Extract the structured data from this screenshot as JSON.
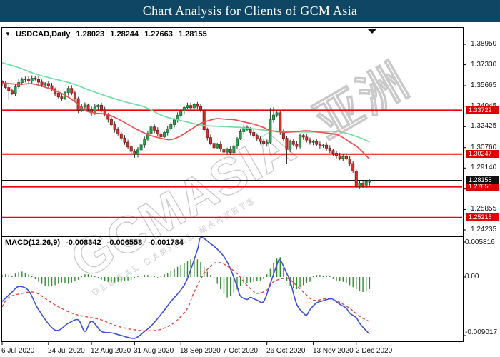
{
  "title_bar": {
    "title": "Chart Analysis for Clients of GCM Asia",
    "bg_color": "#0e4663"
  },
  "chart_header": {
    "symbol_label": "USDCAD,Daily",
    "open": "1.28023",
    "high": "1.28244",
    "low": "1.27663",
    "close": "1.28155"
  },
  "watermark": {
    "main": "GCMASIA",
    "cjk": "亚洲",
    "sub": "GLOBAL CAPITAL MARKETS",
    "color": "#c9c9c9"
  },
  "price_axis": {
    "tick_labels": [
      "1.38950",
      "1.37330",
      "1.35665",
      "1.34045",
      "1.32425",
      "1.30760",
      "1.29140",
      "1.27475",
      "1.25855",
      "1.24235"
    ]
  },
  "date_axis": {
    "labels": [
      "6 Jul 2020",
      "24 Jul 2020",
      "12 Aug 2020",
      "31 Aug 2020",
      "18 Sep 2020",
      "7 Oct 2020",
      "26 Oct 2020",
      "13 Nov 2020",
      "2 Dec 2020"
    ],
    "bar_indices": [
      0,
      14,
      27,
      40,
      54,
      67,
      80,
      94,
      107
    ]
  },
  "macd_header": {
    "label": "MACD(12,26,9)",
    "values": [
      "-0.008342",
      "-0.006558",
      "-0.001784"
    ]
  },
  "macd_axis": {
    "tick_labels": [
      "0.005816",
      "0.00",
      "-0.009017"
    ],
    "tick_values": [
      0.005816,
      0,
      -0.009017
    ]
  },
  "colors": {
    "up_fill": "#2e9e4f",
    "up_stroke": "#156b33",
    "down_fill": "#d32f2f",
    "down_stroke": "#7c1a1a",
    "wick": "#333333",
    "ma_fast_red": "#f0504f",
    "ma_slow_green": "#6fdfa3",
    "level_red": "#f20000",
    "badge_red": "#e00000",
    "current_black": "#111111",
    "macd_blue": "#3c50d8",
    "signal_red": "#e04545",
    "hist_green": "#2f8f2f"
  },
  "chart_data": {
    "type": "candlestick",
    "symbol": "USDCAD",
    "timeframe": "Daily",
    "price_levels": [
      {
        "price": 1.33722,
        "label": "1.33722",
        "style": "red"
      },
      {
        "price": 1.30247,
        "label": "1.30247",
        "style": "red"
      },
      {
        "price": 1.2765,
        "label": "1.27650",
        "style": "red"
      },
      {
        "price": 1.25215,
        "label": "1.25215",
        "style": "red"
      }
    ],
    "current_price": {
      "price": 1.28155,
      "label": "1.28155",
      "style": "black"
    },
    "last_candle": {
      "open": 1.28023,
      "high": 1.28244,
      "low": 1.27663,
      "close": 1.28155
    },
    "closes": [
      1.3585,
      1.3552,
      1.3528,
      1.3505,
      1.3558,
      1.3592,
      1.3615,
      1.3621,
      1.3604,
      1.3626,
      1.3618,
      1.3595,
      1.3572,
      1.3584,
      1.3566,
      1.354,
      1.3508,
      1.3478,
      1.3468,
      1.3512,
      1.3546,
      1.351,
      1.3464,
      1.3372,
      1.3398,
      1.3414,
      1.338,
      1.3352,
      1.3398,
      1.3412,
      1.3376,
      1.3338,
      1.33,
      1.3258,
      1.322,
      1.3186,
      1.3152,
      1.3118,
      1.3082,
      1.3046,
      1.3022,
      1.3058,
      1.3098,
      1.3142,
      1.3188,
      1.324,
      1.3214,
      1.3186,
      1.3162,
      1.3196,
      1.3224,
      1.3258,
      1.3296,
      1.3332,
      1.3366,
      1.3394,
      1.341,
      1.3392,
      1.3418,
      1.3402,
      1.3374,
      1.3218,
      1.3155,
      1.311,
      1.3075,
      1.31,
      1.3066,
      1.304,
      1.3064,
      1.3036,
      1.309,
      1.3148,
      1.3202,
      1.3238,
      1.322,
      1.3196,
      1.3172,
      1.3148,
      1.3124,
      1.3108,
      1.3118,
      1.3298,
      1.3334,
      1.3352,
      1.3198,
      1.315,
      1.3062,
      1.3125,
      1.3102,
      1.3085,
      1.3172,
      1.316,
      1.3136,
      1.3118,
      1.3124,
      1.3102,
      1.3088,
      1.3096,
      1.3072,
      1.3052,
      1.3032,
      1.3012,
      1.2992,
      1.3006,
      1.2986,
      1.295,
      1.2892,
      1.2768,
      1.2792,
      1.2778,
      1.2806,
      1.28155
    ],
    "candle_overrides": {
      "2": {
        "l": 1.3455
      },
      "9": {
        "h": 1.3648
      },
      "40": {
        "l": 1.2995
      },
      "69": {
        "l": 1.3017
      },
      "81": {
        "h": 1.339
      },
      "82": {
        "h": 1.3398
      },
      "83": {
        "h": 1.3372
      },
      "86": {
        "o": 1.315,
        "c": 1.3062,
        "h": 1.317,
        "l": 1.2944
      },
      "107": {
        "o": 1.289,
        "c": 1.2768,
        "l": 1.2756
      },
      "109": {
        "l": 1.2756
      },
      "111": {
        "o": 1.28023,
        "c": 1.28155,
        "h": 1.28244,
        "l": 1.27663
      }
    },
    "ma_slow_green": [
      [
        0,
        1.3748
      ],
      [
        5,
        1.371
      ],
      [
        10,
        1.366
      ],
      [
        15,
        1.3625
      ],
      [
        21,
        1.3585
      ],
      [
        26,
        1.3535
      ],
      [
        32,
        1.348
      ],
      [
        37,
        1.344
      ],
      [
        43,
        1.3398
      ],
      [
        49,
        1.3323
      ],
      [
        55,
        1.3285
      ],
      [
        60,
        1.3255
      ],
      [
        65,
        1.3245
      ],
      [
        71,
        1.3238
      ],
      [
        76,
        1.3225
      ],
      [
        81,
        1.321
      ],
      [
        86,
        1.3203
      ],
      [
        92,
        1.32
      ],
      [
        97,
        1.3203
      ],
      [
        101,
        1.3205
      ],
      [
        104,
        1.319
      ],
      [
        107,
        1.3165
      ],
      [
        109,
        1.3145
      ],
      [
        111,
        1.312
      ]
    ],
    "ma_fast_red": [
      [
        0,
        1.3588
      ],
      [
        5,
        1.3578
      ],
      [
        9,
        1.3582
      ],
      [
        13,
        1.3555
      ],
      [
        18,
        1.3505
      ],
      [
        22,
        1.344
      ],
      [
        25,
        1.3372
      ],
      [
        28,
        1.335
      ],
      [
        32,
        1.3338
      ],
      [
        36,
        1.329
      ],
      [
        40,
        1.323
      ],
      [
        44,
        1.318
      ],
      [
        48,
        1.315
      ],
      [
        51,
        1.314
      ],
      [
        54,
        1.317
      ],
      [
        57,
        1.322
      ],
      [
        60,
        1.3268
      ],
      [
        63,
        1.3295
      ],
      [
        65,
        1.3306
      ],
      [
        68,
        1.33
      ],
      [
        70,
        1.3298
      ],
      [
        73,
        1.328
      ],
      [
        76,
        1.3262
      ],
      [
        79,
        1.3235
      ],
      [
        81,
        1.3212
      ],
      [
        84,
        1.32
      ],
      [
        86,
        1.3198
      ],
      [
        89,
        1.3203
      ],
      [
        92,
        1.321
      ],
      [
        95,
        1.32
      ],
      [
        98,
        1.3192
      ],
      [
        101,
        1.318
      ],
      [
        103,
        1.3155
      ],
      [
        105,
        1.312
      ],
      [
        107,
        1.3088
      ],
      [
        109,
        1.304
      ],
      [
        111,
        1.2984
      ]
    ],
    "macd": {
      "params": "12,26,9",
      "histogram": [
        0.0003,
        0.0004,
        0.0003,
        0.0002,
        0.0005,
        0.0007,
        0.0008,
        0.0006,
        0.0004,
        0.0001,
        -0.0003,
        -0.0007,
        -0.001,
        -0.0013,
        -0.0014,
        -0.0013,
        -0.0012,
        -0.001,
        -0.0008,
        -0.0009,
        -0.001,
        -0.0008,
        -0.0006,
        -0.0004,
        0.0002,
        0.0004,
        0.0004,
        0.0003,
        0.0002,
        -0.0002,
        -0.0004,
        -0.0006,
        -0.0007,
        -0.0008,
        -0.0008,
        -0.0007,
        -0.0007,
        -0.0006,
        -0.0005,
        -0.0004,
        -0.0002,
        0.0001,
        0.0002,
        0.0003,
        0.0003,
        0.0002,
        0.0001,
        -0.0001,
        0.0002,
        0.0004,
        0.0006,
        0.0009,
        0.0012,
        0.0015,
        0.0018,
        0.0021,
        0.0024,
        0.0026,
        0.0028,
        0.0026,
        0.0022,
        0.0015,
        0.0008,
        0.0003,
        -0.0002,
        -0.001,
        -0.0018,
        -0.0025,
        -0.003,
        -0.0028,
        -0.0024,
        -0.0018,
        -0.0013,
        -0.001,
        -0.0009,
        -0.0008,
        -0.0007,
        -0.0006,
        -0.0005,
        -0.0003,
        0.0004,
        0.0012,
        0.002,
        0.0027,
        0.0029,
        0.0014,
        -0.0006,
        -0.0013,
        -0.0017,
        -0.0018,
        -0.0015,
        -0.0012,
        -0.0009,
        -0.0007,
        0.0002,
        0.0003,
        0.0003,
        0.0002,
        0.0002,
        0.0001,
        -0.0003,
        -0.0005,
        -0.0006,
        -0.0007,
        -0.0009,
        -0.0012,
        -0.0015,
        -0.0018,
        -0.0021,
        -0.0022,
        -0.002,
        -0.001784
      ],
      "macd_line": [
        [
          0,
          -0.0036
        ],
        [
          3,
          -0.0022
        ],
        [
          5,
          -0.0014
        ],
        [
          8,
          -0.002
        ],
        [
          11,
          -0.0048
        ],
        [
          16,
          -0.0078
        ],
        [
          20,
          -0.0068
        ],
        [
          23,
          -0.0063
        ],
        [
          25,
          -0.008
        ],
        [
          27,
          -0.0065
        ],
        [
          30,
          -0.008
        ],
        [
          33,
          -0.0082
        ],
        [
          36,
          -0.0086
        ],
        [
          40,
          -0.009017
        ],
        [
          43,
          -0.008
        ],
        [
          45,
          -0.0072
        ],
        [
          48,
          -0.0055
        ],
        [
          51,
          -0.0036
        ],
        [
          54,
          -0.0019
        ],
        [
          56,
          -0.0002
        ],
        [
          59,
          0.004
        ],
        [
          60,
          0.0058
        ],
        [
          63,
          0.0049
        ],
        [
          65,
          0.0041
        ],
        [
          67,
          0.003
        ],
        [
          69,
          0.0012
        ],
        [
          71,
          -0.0014
        ],
        [
          72,
          -0.0028
        ],
        [
          74,
          -0.0033
        ],
        [
          75,
          -0.003
        ],
        [
          77,
          -0.0034
        ],
        [
          79,
          -0.0036
        ],
        [
          81,
          -0.001
        ],
        [
          83,
          0.0018
        ],
        [
          84,
          0.0025
        ],
        [
          86,
          0.0005
        ],
        [
          87,
          -0.0006
        ],
        [
          89,
          -0.004
        ],
        [
          91,
          -0.0053
        ],
        [
          92,
          -0.0056
        ],
        [
          93,
          -0.0048
        ],
        [
          95,
          -0.0038
        ],
        [
          97,
          -0.0035
        ],
        [
          99,
          -0.0032
        ],
        [
          100,
          -0.0033
        ],
        [
          102,
          -0.004
        ],
        [
          104,
          -0.0046
        ],
        [
          105,
          -0.0053
        ],
        [
          107,
          -0.006
        ],
        [
          108,
          -0.0068
        ],
        [
          110,
          -0.0079
        ],
        [
          111,
          -0.008342
        ]
      ],
      "signal_line": [
        [
          0,
          -0.0044
        ],
        [
          2,
          -0.003
        ],
        [
          6,
          -0.0024
        ],
        [
          9,
          -0.0022
        ],
        [
          11,
          -0.0025
        ],
        [
          16,
          -0.0041
        ],
        [
          21,
          -0.0053
        ],
        [
          25,
          -0.0058
        ],
        [
          30,
          -0.0063
        ],
        [
          34,
          -0.0071
        ],
        [
          38,
          -0.0076
        ],
        [
          43,
          -0.0079
        ],
        [
          47,
          -0.0078
        ],
        [
          50,
          -0.0073
        ],
        [
          53,
          -0.0063
        ],
        [
          56,
          -0.0046
        ],
        [
          58,
          -0.0022
        ],
        [
          61,
          0.0005
        ],
        [
          64,
          0.002
        ],
        [
          66,
          0.0021
        ],
        [
          68,
          0.0016
        ],
        [
          71,
          0.0005
        ],
        [
          73,
          -0.0007
        ],
        [
          75,
          -0.0017
        ],
        [
          77,
          -0.0024
        ],
        [
          80,
          -0.0019
        ],
        [
          82,
          -0.0007
        ],
        [
          85,
          -0.0002
        ],
        [
          87,
          -0.0004
        ],
        [
          91,
          -0.0022
        ],
        [
          94,
          -0.0034
        ],
        [
          98,
          -0.0032
        ],
        [
          101,
          -0.0035
        ],
        [
          105,
          -0.0046
        ],
        [
          108,
          -0.0058
        ],
        [
          111,
          -0.006558
        ]
      ]
    }
  }
}
